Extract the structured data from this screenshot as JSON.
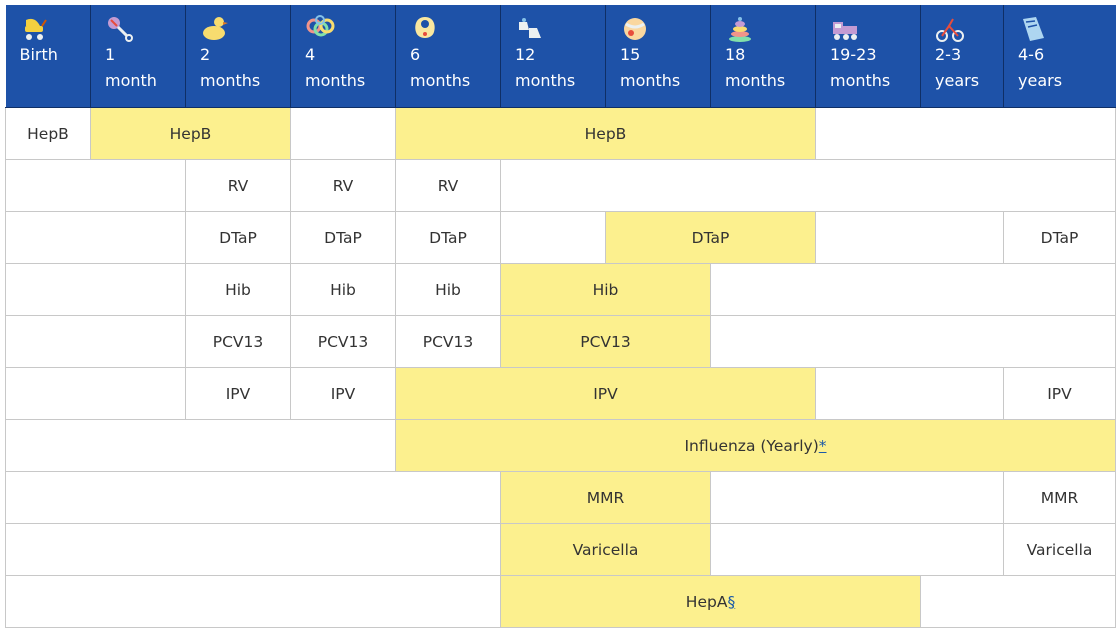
{
  "headers": [
    {
      "icon": "stroller-icon",
      "line1": "Birth",
      "line2": ""
    },
    {
      "icon": "rattle-icon",
      "line1": "1",
      "line2": "month"
    },
    {
      "icon": "rubber-duck-icon",
      "line1": "2",
      "line2": "months"
    },
    {
      "icon": "teether-rings-icon",
      "line1": "4",
      "line2": "months"
    },
    {
      "icon": "bib-icon",
      "line1": "6",
      "line2": "months"
    },
    {
      "icon": "baby-shoes-icon",
      "line1": "12",
      "line2": "months"
    },
    {
      "icon": "ball-icon",
      "line1": "15",
      "line2": "months"
    },
    {
      "icon": "stacking-rings-icon",
      "line1": "18",
      "line2": "months"
    },
    {
      "icon": "toy-train-icon",
      "line1": "19-23",
      "line2": "months"
    },
    {
      "icon": "tricycle-icon",
      "line1": "2-3",
      "line2": "years"
    },
    {
      "icon": "book-icon",
      "line1": "4-6",
      "line2": "years"
    }
  ],
  "colors": {
    "header_bg": "#1e52a8",
    "highlight": "#fcf08e",
    "border": "#c8c8c8",
    "link": "#1b5aa8"
  },
  "rows": [
    {
      "name": "hepb",
      "cells": [
        {
          "span": 1,
          "text": "HepB",
          "hl": false
        },
        {
          "span": 2,
          "text": "HepB",
          "hl": true
        },
        {
          "span": 1,
          "text": "",
          "hl": false
        },
        {
          "span": 4,
          "text": "HepB",
          "hl": true
        },
        {
          "span": 3,
          "text": "",
          "hl": false
        }
      ]
    },
    {
      "name": "rv",
      "cells": [
        {
          "span": 2,
          "text": "",
          "hl": false
        },
        {
          "span": 1,
          "text": "RV",
          "hl": false
        },
        {
          "span": 1,
          "text": "RV",
          "hl": false
        },
        {
          "span": 1,
          "text": "RV",
          "hl": false
        },
        {
          "span": 6,
          "text": "",
          "hl": false
        }
      ]
    },
    {
      "name": "dtap",
      "cells": [
        {
          "span": 2,
          "text": "",
          "hl": false
        },
        {
          "span": 1,
          "text": "DTaP",
          "hl": false
        },
        {
          "span": 1,
          "text": "DTaP",
          "hl": false
        },
        {
          "span": 1,
          "text": "DTaP",
          "hl": false
        },
        {
          "span": 1,
          "text": "",
          "hl": false
        },
        {
          "span": 2,
          "text": "DTaP",
          "hl": true
        },
        {
          "span": 2,
          "text": "",
          "hl": false
        },
        {
          "span": 1,
          "text": "DTaP",
          "hl": false
        }
      ]
    },
    {
      "name": "hib",
      "cells": [
        {
          "span": 2,
          "text": "",
          "hl": false
        },
        {
          "span": 1,
          "text": "Hib",
          "hl": false
        },
        {
          "span": 1,
          "text": "Hib",
          "hl": false
        },
        {
          "span": 1,
          "text": "Hib",
          "hl": false
        },
        {
          "span": 2,
          "text": "Hib",
          "hl": true
        },
        {
          "span": 4,
          "text": "",
          "hl": false
        }
      ]
    },
    {
      "name": "pcv13",
      "cells": [
        {
          "span": 2,
          "text": "",
          "hl": false
        },
        {
          "span": 1,
          "text": "PCV13",
          "hl": false
        },
        {
          "span": 1,
          "text": "PCV13",
          "hl": false
        },
        {
          "span": 1,
          "text": "PCV13",
          "hl": false
        },
        {
          "span": 2,
          "text": "PCV13",
          "hl": true
        },
        {
          "span": 4,
          "text": "",
          "hl": false
        }
      ]
    },
    {
      "name": "ipv",
      "cells": [
        {
          "span": 2,
          "text": "",
          "hl": false
        },
        {
          "span": 1,
          "text": "IPV",
          "hl": false
        },
        {
          "span": 1,
          "text": "IPV",
          "hl": false
        },
        {
          "span": 4,
          "text": "IPV",
          "hl": true
        },
        {
          "span": 2,
          "text": "",
          "hl": false
        },
        {
          "span": 1,
          "text": "IPV",
          "hl": false
        }
      ]
    },
    {
      "name": "influenza",
      "cells": [
        {
          "span": 4,
          "text": "",
          "hl": false
        },
        {
          "span": 7,
          "text": "Influenza (Yearly)",
          "link": "*",
          "hl": true
        }
      ]
    },
    {
      "name": "mmr",
      "cells": [
        {
          "span": 5,
          "text": "",
          "hl": false
        },
        {
          "span": 2,
          "text": "MMR",
          "hl": true
        },
        {
          "span": 3,
          "text": "",
          "hl": false
        },
        {
          "span": 1,
          "text": "MMR",
          "hl": false
        }
      ]
    },
    {
      "name": "varicella",
      "cells": [
        {
          "span": 5,
          "text": "",
          "hl": false
        },
        {
          "span": 2,
          "text": "Varicella",
          "hl": true
        },
        {
          "span": 3,
          "text": "",
          "hl": false
        },
        {
          "span": 1,
          "text": "Varicella",
          "hl": false
        }
      ]
    },
    {
      "name": "hepa",
      "cells": [
        {
          "span": 5,
          "text": "",
          "hl": false
        },
        {
          "span": 4,
          "text": "HepA",
          "link": "§",
          "hl": true
        },
        {
          "span": 2,
          "text": "",
          "hl": false
        }
      ]
    }
  ]
}
